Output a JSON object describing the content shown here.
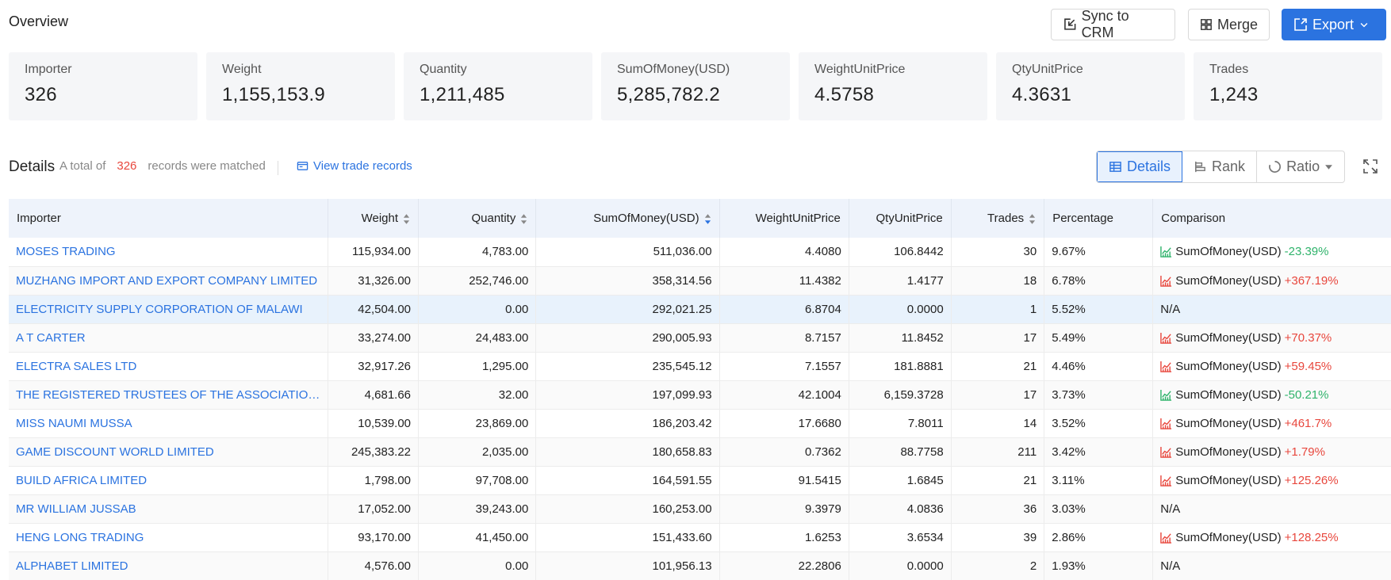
{
  "header": {
    "title": "Overview",
    "sync_label": "Sync to CRM",
    "merge_label": "Merge",
    "export_label": "Export",
    "accent": "#2b73e0"
  },
  "stats": [
    {
      "label": "Importer",
      "value": "326"
    },
    {
      "label": "Weight",
      "value": "1,155,153.9"
    },
    {
      "label": "Quantity",
      "value": "1,211,485"
    },
    {
      "label": "SumOfMoney(USD)",
      "value": "5,285,782.2"
    },
    {
      "label": "WeightUnitPrice",
      "value": "4.5758"
    },
    {
      "label": "QtyUnitPrice",
      "value": "4.3631"
    },
    {
      "label": "Trades",
      "value": "1,243"
    }
  ],
  "details": {
    "title": "Details",
    "prefix": "A total of",
    "count": "326",
    "suffix": "records were matched",
    "view_link": "View trade records",
    "tabs": {
      "details": "Details",
      "rank": "Rank",
      "ratio": "Ratio"
    }
  },
  "table": {
    "columns": [
      "Importer",
      "Weight",
      "Quantity",
      "SumOfMoney(USD)",
      "WeightUnitPrice",
      "QtyUnitPrice",
      "Trades",
      "Percentage",
      "Comparison"
    ],
    "rows": [
      {
        "name": "MOSES TRADING",
        "weight": "115,934.00",
        "qty": "4,783.00",
        "sum": "511,036.00",
        "wup": "4.4080",
        "qup": "106.8442",
        "trades": "30",
        "pct": "9.67%",
        "cmp_label": "SumOfMoney(USD)",
        "cmp_val": "-23.39%",
        "dir": "neg"
      },
      {
        "name": "MUZHANG IMPORT AND EXPORT COMPANY LIMITED",
        "weight": "31,326.00",
        "qty": "252,746.00",
        "sum": "358,314.56",
        "wup": "11.4382",
        "qup": "1.4177",
        "trades": "18",
        "pct": "6.78%",
        "cmp_label": "SumOfMoney(USD)",
        "cmp_val": "+367.19%",
        "dir": "pos"
      },
      {
        "name": "ELECTRICITY SUPPLY CORPORATION OF MALAWI",
        "weight": "42,504.00",
        "qty": "0.00",
        "sum": "292,021.25",
        "wup": "6.8704",
        "qup": "0.0000",
        "trades": "1",
        "pct": "5.52%",
        "cmp_label": "N/A",
        "cmp_val": "",
        "dir": "na"
      },
      {
        "name": "A T CARTER",
        "weight": "33,274.00",
        "qty": "24,483.00",
        "sum": "290,005.93",
        "wup": "8.7157",
        "qup": "11.8452",
        "trades": "17",
        "pct": "5.49%",
        "cmp_label": "SumOfMoney(USD)",
        "cmp_val": "+70.37%",
        "dir": "pos"
      },
      {
        "name": "ELECTRA SALES LTD",
        "weight": "32,917.26",
        "qty": "1,295.00",
        "sum": "235,545.12",
        "wup": "7.1557",
        "qup": "181.8881",
        "trades": "21",
        "pct": "4.46%",
        "cmp_label": "SumOfMoney(USD)",
        "cmp_val": "+59.45%",
        "dir": "pos"
      },
      {
        "name": "THE REGISTERED TRUSTEES OF THE ASSOCIATION ...",
        "weight": "4,681.66",
        "qty": "32.00",
        "sum": "197,099.93",
        "wup": "42.1004",
        "qup": "6,159.3728",
        "trades": "17",
        "pct": "3.73%",
        "cmp_label": "SumOfMoney(USD)",
        "cmp_val": "-50.21%",
        "dir": "neg"
      },
      {
        "name": "MISS NAUMI MUSSA",
        "weight": "10,539.00",
        "qty": "23,869.00",
        "sum": "186,203.42",
        "wup": "17.6680",
        "qup": "7.8011",
        "trades": "14",
        "pct": "3.52%",
        "cmp_label": "SumOfMoney(USD)",
        "cmp_val": "+461.7%",
        "dir": "pos"
      },
      {
        "name": "GAME DISCOUNT WORLD LIMITED",
        "weight": "245,383.22",
        "qty": "2,035.00",
        "sum": "180,658.83",
        "wup": "0.7362",
        "qup": "88.7758",
        "trades": "211",
        "pct": "3.42%",
        "cmp_label": "SumOfMoney(USD)",
        "cmp_val": "+1.79%",
        "dir": "pos"
      },
      {
        "name": "BUILD AFRICA LIMITED",
        "weight": "1,798.00",
        "qty": "97,708.00",
        "sum": "164,591.55",
        "wup": "91.5415",
        "qup": "1.6845",
        "trades": "21",
        "pct": "3.11%",
        "cmp_label": "SumOfMoney(USD)",
        "cmp_val": "+125.26%",
        "dir": "pos"
      },
      {
        "name": "MR WILLIAM JUSSAB",
        "weight": "17,052.00",
        "qty": "39,243.00",
        "sum": "160,253.00",
        "wup": "9.3979",
        "qup": "4.0836",
        "trades": "36",
        "pct": "3.03%",
        "cmp_label": "N/A",
        "cmp_val": "",
        "dir": "na"
      },
      {
        "name": "HENG LONG TRADING",
        "weight": "93,170.00",
        "qty": "41,450.00",
        "sum": "151,433.60",
        "wup": "1.6253",
        "qup": "3.6534",
        "trades": "39",
        "pct": "2.86%",
        "cmp_label": "SumOfMoney(USD)",
        "cmp_val": "+128.25%",
        "dir": "pos"
      },
      {
        "name": "ALPHABET LIMITED",
        "weight": "4,576.00",
        "qty": "0.00",
        "sum": "101,956.13",
        "wup": "22.2806",
        "qup": "0.0000",
        "trades": "2",
        "pct": "1.93%",
        "cmp_label": "N/A",
        "cmp_val": "",
        "dir": "na"
      }
    ]
  }
}
